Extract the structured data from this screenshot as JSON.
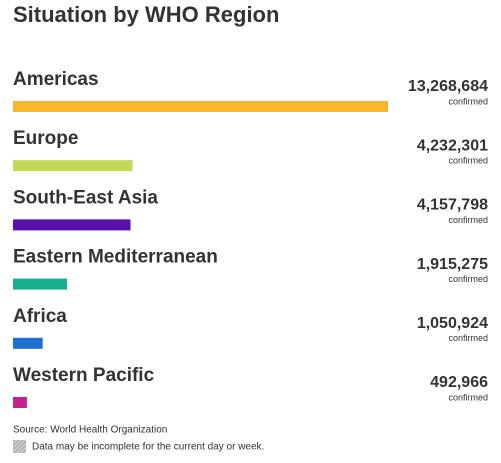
{
  "chart_data": {
    "type": "bar",
    "orientation": "horizontal",
    "title": "Situation by WHO Region",
    "categories": [
      "Americas",
      "Europe",
      "South-East Asia",
      "Eastern Mediterranean",
      "Africa",
      "Western Pacific"
    ],
    "values": [
      13268684,
      4232301,
      4157798,
      1915275,
      1050924,
      492966
    ],
    "value_labels": [
      "13,268,684",
      "4,232,301",
      "4,157,798",
      "1,915,275",
      "1,050,924",
      "492,966"
    ],
    "value_caption": "confirmed",
    "colors": [
      "#f8b62b",
      "#c5d65a",
      "#5a0fa8",
      "#1aae91",
      "#1f6fd1",
      "#c5218f"
    ],
    "source": "Source: World Health Organization",
    "note": "Data may be incomplete for the current day or week."
  }
}
